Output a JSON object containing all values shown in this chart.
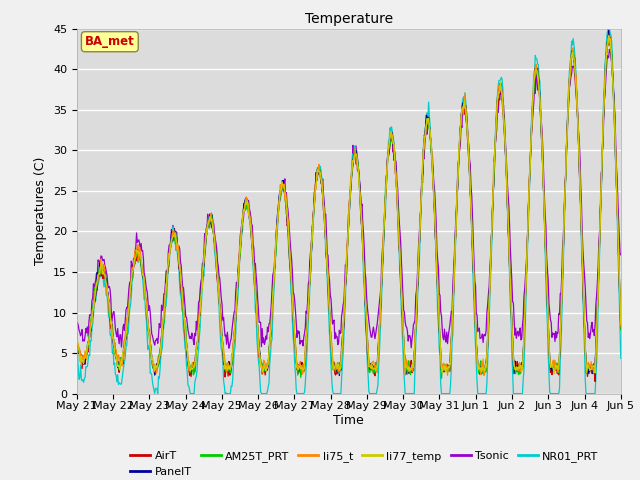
{
  "title": "Temperature",
  "ylabel": "Temperatures (C)",
  "xlabel": "Time",
  "ylim": [
    0,
    45
  ],
  "series_names": [
    "AirT",
    "PanelT",
    "AM25T_PRT",
    "li75_t",
    "li77_temp",
    "Tsonic",
    "NR01_PRT"
  ],
  "series_colors": [
    "#cc0000",
    "#000099",
    "#00cc00",
    "#ff8800",
    "#cccc00",
    "#9900cc",
    "#00cccc"
  ],
  "annotation_text": "BA_met",
  "annotation_color": "#cc0000",
  "annotation_bg": "#ffff99",
  "annotation_border": "#888844",
  "plot_bg": "#dcdcdc",
  "fig_bg": "#f0f0f0",
  "tick_labels": [
    "May 21",
    "May 22",
    "May 23",
    "May 24",
    "May 25",
    "May 26",
    "May 27",
    "May 28",
    "May 29",
    "May 30",
    "May 31",
    "Jun 1",
    "Jun 2",
    "Jun 3",
    "Jun 4",
    "Jun 5"
  ]
}
